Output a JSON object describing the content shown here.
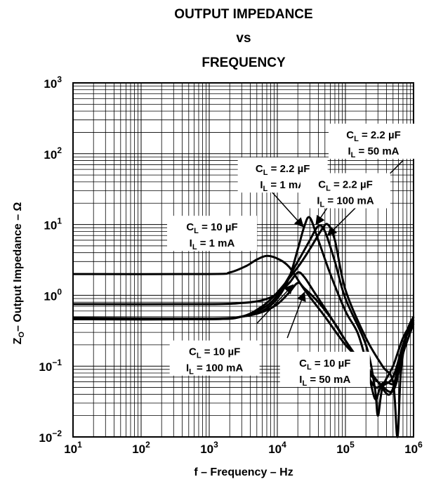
{
  "chart_data": {
    "type": "line",
    "title_lines": [
      "OUTPUT IMPEDANCE",
      "vs",
      "FREQUENCY"
    ],
    "xlabel": "f – Frequency – Hz",
    "ylabel": "Z",
    "ylabel_sub": "O",
    "ylabel_rest": "– Output Impedance – Ω",
    "xscale": "log",
    "yscale": "log",
    "xlim": [
      10,
      1000000
    ],
    "ylim": [
      0.01,
      1000
    ],
    "grid": true,
    "legend": "none",
    "x_ticks": [
      {
        "base": "10",
        "exp": "1",
        "value": 10
      },
      {
        "base": "10",
        "exp": "2",
        "value": 100
      },
      {
        "base": "10",
        "exp": "3",
        "value": 1000
      },
      {
        "base": "10",
        "exp": "4",
        "value": 10000
      },
      {
        "base": "10",
        "exp": "5",
        "value": 100000
      },
      {
        "base": "10",
        "exp": "6",
        "value": 1000000
      }
    ],
    "y_ticks": [
      {
        "base": "10",
        "exp": "−2",
        "value": 0.01
      },
      {
        "base": "10",
        "exp": "−1",
        "value": 0.1
      },
      {
        "base": "10",
        "exp": "0",
        "value": 1
      },
      {
        "base": "10",
        "exp": "1",
        "value": 10
      },
      {
        "base": "10",
        "exp": "2",
        "value": 100
      },
      {
        "base": "10",
        "exp": "3",
        "value": 1000
      }
    ],
    "series": [
      {
        "id": "cl10-il1",
        "points": [
          [
            10,
            2
          ],
          [
            1000,
            2
          ],
          [
            2000,
            2.1
          ],
          [
            3500,
            2.6
          ],
          [
            5000,
            3.2
          ],
          [
            7000,
            3.6
          ],
          [
            10000,
            3.3
          ],
          [
            15000,
            2.5
          ],
          [
            25000,
            1.2
          ],
          [
            50000,
            0.5
          ],
          [
            100000,
            0.2
          ],
          [
            200000,
            0.1
          ],
          [
            300000,
            0.06
          ],
          [
            450000,
            0.04
          ],
          [
            600000,
            0.1
          ],
          [
            800000,
            0.3
          ],
          [
            1000000,
            0.5
          ]
        ]
      },
      {
        "id": "cl10-il100",
        "points": [
          [
            10,
            0.75
          ],
          [
            1000,
            0.75
          ],
          [
            3000,
            0.78
          ],
          [
            6000,
            0.85
          ],
          [
            10000,
            1.05
          ],
          [
            15000,
            1.5
          ],
          [
            20000,
            2.1
          ],
          [
            25000,
            1.8
          ],
          [
            35000,
            1.1
          ],
          [
            60000,
            0.5
          ],
          [
            100000,
            0.23
          ],
          [
            200000,
            0.09
          ],
          [
            300000,
            0.06
          ],
          [
            500000,
            0.045
          ],
          [
            700000,
            0.15
          ],
          [
            1000000,
            0.4
          ]
        ]
      },
      {
        "id": "cl10-il50",
        "points": [
          [
            10,
            0.48
          ],
          [
            1000,
            0.47
          ],
          [
            3000,
            0.5
          ],
          [
            6000,
            0.58
          ],
          [
            10000,
            0.75
          ],
          [
            15000,
            1.1
          ],
          [
            20000,
            1.5
          ],
          [
            25000,
            1.25
          ],
          [
            40000,
            0.8
          ],
          [
            70000,
            0.4
          ],
          [
            100000,
            0.23
          ],
          [
            200000,
            0.08
          ],
          [
            280000,
            0.05
          ],
          [
            380000,
            0.06
          ],
          [
            550000,
            0.06
          ],
          [
            700000,
            0.2
          ],
          [
            1000000,
            0.42
          ]
        ]
      },
      {
        "id": "cl22-il1",
        "points": [
          [
            10,
            0.46
          ],
          [
            1000,
            0.46
          ],
          [
            3000,
            0.5
          ],
          [
            6000,
            0.6
          ],
          [
            10000,
            0.9
          ],
          [
            15000,
            1.8
          ],
          [
            20000,
            4.5
          ],
          [
            25000,
            9.5
          ],
          [
            30000,
            12.5
          ],
          [
            40000,
            6
          ],
          [
            60000,
            2
          ],
          [
            100000,
            0.6
          ],
          [
            150000,
            0.3
          ],
          [
            200000,
            0.12
          ],
          [
            270000,
            0.035
          ],
          [
            330000,
            0.05
          ],
          [
            500000,
            0.07
          ],
          [
            700000,
            0.2
          ],
          [
            1000000,
            0.45
          ]
        ]
      },
      {
        "id": "cl22-il100",
        "points": [
          [
            10,
            0.46
          ],
          [
            1000,
            0.46
          ],
          [
            3000,
            0.5
          ],
          [
            6000,
            0.65
          ],
          [
            10000,
            1.0
          ],
          [
            20000,
            3
          ],
          [
            30000,
            6
          ],
          [
            40000,
            9.5
          ],
          [
            50000,
            8
          ],
          [
            70000,
            3
          ],
          [
            100000,
            0.9
          ],
          [
            200000,
            0.2
          ],
          [
            270000,
            0.05
          ],
          [
            300000,
            0.02
          ],
          [
            350000,
            0.05
          ],
          [
            500000,
            0.1
          ],
          [
            700000,
            0.25
          ],
          [
            1000000,
            0.45
          ]
        ]
      },
      {
        "id": "cl22-il50",
        "points": [
          [
            10,
            0.46
          ],
          [
            1000,
            0.46
          ],
          [
            3000,
            0.5
          ],
          [
            6000,
            0.7
          ],
          [
            10000,
            1.1
          ],
          [
            20000,
            2.5
          ],
          [
            30000,
            4.5
          ],
          [
            45000,
            8.5
          ],
          [
            55000,
            10
          ],
          [
            70000,
            6
          ],
          [
            100000,
            1.2
          ],
          [
            200000,
            0.25
          ],
          [
            350000,
            0.1
          ],
          [
            500000,
            0.06
          ],
          [
            580000,
            0.01
          ],
          [
            650000,
            0.08
          ],
          [
            800000,
            0.3
          ],
          [
            1000000,
            0.5
          ]
        ]
      }
    ],
    "annotations": [
      {
        "c_main": "C",
        "c_sub": "L",
        "c_val": " = 2.2 µF",
        "i_main": "I",
        "i_sub": "L",
        "i_val": " = 50 mA",
        "label_at": [
          5000000,
          150
        ],
        "arrow_from": [
          700000,
          80
        ],
        "arrow_to": [
          55000,
          7
        ]
      },
      {
        "c_main": "C",
        "c_sub": "L",
        "c_val": " = 2.2 µF",
        "i_main": "I",
        "i_sub": "L",
        "i_val": " = 1 mA",
        "label_at": [
          12000,
          50
        ],
        "arrow_from": [
          8000,
          30
        ],
        "arrow_to": [
          24000,
          9.3
        ]
      },
      {
        "c_main": "C",
        "c_sub": "L",
        "c_val": " = 2.2 µF",
        "i_main": "I",
        "i_sub": "L",
        "i_val": " = 100 mA",
        "label_at": [
          100000,
          30
        ],
        "arrow_from": [
          60000,
          20
        ],
        "arrow_to": [
          37000,
          10
        ]
      },
      {
        "c_main": "C",
        "c_sub": "L",
        "c_val": " = 10 µF",
        "i_main": "I",
        "i_sub": "L",
        "i_val": " = 1 mA",
        "label_at": [
          1100,
          7.5
        ],
        "arrow_from": null,
        "arrow_to": null
      },
      {
        "c_main": "C",
        "c_sub": "L",
        "c_val": " = 10 µF",
        "i_main": "I",
        "i_sub": "L",
        "i_val": " = 100 mA",
        "label_at": [
          1200,
          0.13
        ],
        "arrow_from": [
          5000,
          0.4
        ],
        "arrow_to": [
          17000,
          1.4
        ]
      },
      {
        "c_main": "C",
        "c_sub": "L",
        "c_val": " = 10 µF",
        "i_main": "I",
        "i_sub": "L",
        "i_val": " = 50 mA",
        "label_at": [
          50000,
          0.09
        ],
        "arrow_from": [
          14000,
          0.25
        ],
        "arrow_to": [
          25000,
          1.1
        ]
      }
    ],
    "colors": {
      "line": "#000000",
      "grid": "#000000",
      "background": "#ffffff"
    }
  }
}
